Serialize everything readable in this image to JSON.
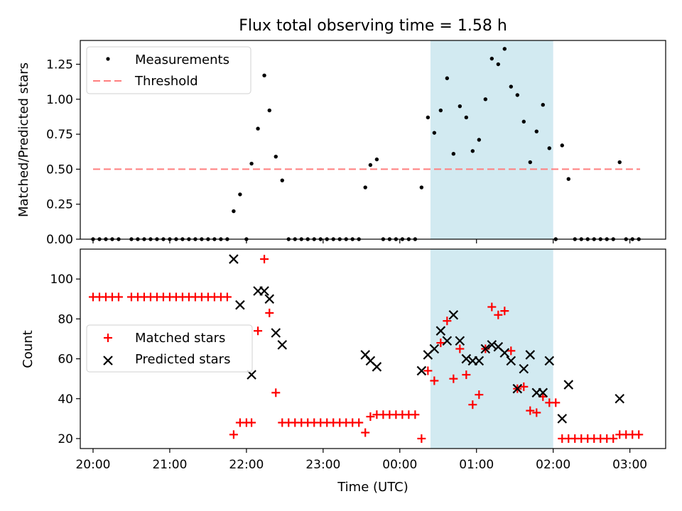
{
  "title": "Flux total observing time = 1.58 h",
  "colors": {
    "highlight": "#add8e6",
    "matched": "#ff0000",
    "predicted": "#000000",
    "threshold": "#ff7f7f"
  },
  "chart_data": [
    {
      "type": "scatter",
      "panel": "top",
      "title": "Flux total observing time = 1.58 h",
      "xlabel": "",
      "ylabel": "Matched/Predicted stars",
      "xlim": [
        "19:50",
        "03:28"
      ],
      "ylim": [
        0,
        1.42
      ],
      "yticks": [
        "0.00",
        "0.25",
        "0.50",
        "0.75",
        "1.00",
        "1.25"
      ],
      "highlight_span": [
        "00:24",
        "02:00"
      ],
      "legend_position": "upper-left",
      "threshold": {
        "name": "Threshold",
        "y": 0.5,
        "x_from": "20:00",
        "x_to": "03:08",
        "style": "dashed"
      },
      "series": [
        {
          "name": "Measurements",
          "marker": "dot",
          "points": [
            [
              "20:00",
              0
            ],
            [
              "20:05",
              0
            ],
            [
              "20:10",
              0
            ],
            [
              "20:15",
              0
            ],
            [
              "20:20",
              0
            ],
            [
              "20:30",
              0
            ],
            [
              "20:35",
              0
            ],
            [
              "20:40",
              0
            ],
            [
              "20:45",
              0
            ],
            [
              "20:50",
              0
            ],
            [
              "20:55",
              0
            ],
            [
              "21:00",
              0
            ],
            [
              "21:05",
              0
            ],
            [
              "21:10",
              0
            ],
            [
              "21:15",
              0
            ],
            [
              "21:20",
              0
            ],
            [
              "21:25",
              0
            ],
            [
              "21:30",
              0
            ],
            [
              "21:35",
              0
            ],
            [
              "21:40",
              0
            ],
            [
              "21:45",
              0
            ],
            [
              "21:50",
              0.2
            ],
            [
              "21:55",
              0.32
            ],
            [
              "22:00",
              0
            ],
            [
              "22:04",
              0.54
            ],
            [
              "22:09",
              0.79
            ],
            [
              "22:14",
              1.17
            ],
            [
              "22:18",
              0.92
            ],
            [
              "22:23",
              0.59
            ],
            [
              "22:28",
              0.42
            ],
            [
              "22:33",
              0
            ],
            [
              "22:38",
              0
            ],
            [
              "22:43",
              0
            ],
            [
              "22:48",
              0
            ],
            [
              "22:53",
              0
            ],
            [
              "22:58",
              0
            ],
            [
              "23:03",
              0
            ],
            [
              "23:08",
              0
            ],
            [
              "23:13",
              0
            ],
            [
              "23:18",
              0
            ],
            [
              "23:23",
              0
            ],
            [
              "23:28",
              0
            ],
            [
              "23:33",
              0.37
            ],
            [
              "23:37",
              0.53
            ],
            [
              "23:42",
              0.57
            ],
            [
              "23:47",
              0
            ],
            [
              "23:52",
              0
            ],
            [
              "23:57",
              0
            ],
            [
              "00:02",
              0
            ],
            [
              "00:07",
              0
            ],
            [
              "00:12",
              0
            ],
            [
              "00:17",
              0.37
            ],
            [
              "00:22",
              0.87
            ],
            [
              "00:27",
              0.76
            ],
            [
              "00:32",
              0.92
            ],
            [
              "00:37",
              1.15
            ],
            [
              "00:42",
              0.61
            ],
            [
              "00:47",
              0.95
            ],
            [
              "00:52",
              0.87
            ],
            [
              "00:57",
              0.63
            ],
            [
              "01:02",
              0.71
            ],
            [
              "01:07",
              1.0
            ],
            [
              "01:12",
              1.29
            ],
            [
              "01:17",
              1.25
            ],
            [
              "01:22",
              1.36
            ],
            [
              "01:27",
              1.09
            ],
            [
              "01:32",
              1.03
            ],
            [
              "01:37",
              0.84
            ],
            [
              "01:42",
              0.55
            ],
            [
              "01:47",
              0.77
            ],
            [
              "01:52",
              0.96
            ],
            [
              "01:57",
              0.65
            ],
            [
              "02:02",
              0
            ],
            [
              "02:07",
              0.67
            ],
            [
              "02:12",
              0.43
            ],
            [
              "02:17",
              0
            ],
            [
              "02:22",
              0
            ],
            [
              "02:27",
              0
            ],
            [
              "02:32",
              0
            ],
            [
              "02:37",
              0
            ],
            [
              "02:42",
              0
            ],
            [
              "02:47",
              0
            ],
            [
              "02:52",
              0.55
            ],
            [
              "02:57",
              0
            ],
            [
              "03:02",
              0
            ],
            [
              "03:07",
              0
            ]
          ]
        }
      ]
    },
    {
      "type": "scatter",
      "panel": "bottom",
      "xlabel": "Time (UTC)",
      "ylabel": "Count",
      "xlim": [
        "19:50",
        "03:28"
      ],
      "ylim": [
        15,
        115
      ],
      "yticks": [
        "20",
        "40",
        "60",
        "80",
        "100"
      ],
      "xticks": [
        "20:00",
        "21:00",
        "22:00",
        "23:00",
        "00:00",
        "01:00",
        "02:00",
        "03:00"
      ],
      "highlight_span": [
        "00:24",
        "02:00"
      ],
      "legend_position": "center-left",
      "series": [
        {
          "name": "Matched stars",
          "marker": "plus",
          "points": [
            [
              "20:00",
              91
            ],
            [
              "20:05",
              91
            ],
            [
              "20:10",
              91
            ],
            [
              "20:15",
              91
            ],
            [
              "20:20",
              91
            ],
            [
              "20:30",
              91
            ],
            [
              "20:35",
              91
            ],
            [
              "20:40",
              91
            ],
            [
              "20:45",
              91
            ],
            [
              "20:50",
              91
            ],
            [
              "20:55",
              91
            ],
            [
              "21:00",
              91
            ],
            [
              "21:05",
              91
            ],
            [
              "21:10",
              91
            ],
            [
              "21:15",
              91
            ],
            [
              "21:20",
              91
            ],
            [
              "21:25",
              91
            ],
            [
              "21:30",
              91
            ],
            [
              "21:35",
              91
            ],
            [
              "21:40",
              91
            ],
            [
              "21:45",
              91
            ],
            [
              "21:50",
              22
            ],
            [
              "21:55",
              28
            ],
            [
              "22:00",
              28
            ],
            [
              "22:04",
              28
            ],
            [
              "22:09",
              74
            ],
            [
              "22:14",
              110
            ],
            [
              "22:18",
              83
            ],
            [
              "22:23",
              43
            ],
            [
              "22:28",
              28
            ],
            [
              "22:33",
              28
            ],
            [
              "22:38",
              28
            ],
            [
              "22:43",
              28
            ],
            [
              "22:48",
              28
            ],
            [
              "22:53",
              28
            ],
            [
              "22:58",
              28
            ],
            [
              "23:03",
              28
            ],
            [
              "23:08",
              28
            ],
            [
              "23:13",
              28
            ],
            [
              "23:18",
              28
            ],
            [
              "23:23",
              28
            ],
            [
              "23:28",
              28
            ],
            [
              "23:33",
              23
            ],
            [
              "23:37",
              31
            ],
            [
              "23:42",
              32
            ],
            [
              "23:47",
              32
            ],
            [
              "23:52",
              32
            ],
            [
              "23:57",
              32
            ],
            [
              "00:02",
              32
            ],
            [
              "00:07",
              32
            ],
            [
              "00:12",
              32
            ],
            [
              "00:17",
              20
            ],
            [
              "00:22",
              54
            ],
            [
              "00:27",
              49
            ],
            [
              "00:32",
              68
            ],
            [
              "00:37",
              79
            ],
            [
              "00:42",
              50
            ],
            [
              "00:47",
              65
            ],
            [
              "00:52",
              52
            ],
            [
              "00:57",
              37
            ],
            [
              "01:02",
              42
            ],
            [
              "01:07",
              65
            ],
            [
              "01:12",
              86
            ],
            [
              "01:17",
              82
            ],
            [
              "01:22",
              84
            ],
            [
              "01:27",
              64
            ],
            [
              "01:32",
              45
            ],
            [
              "01:37",
              46
            ],
            [
              "01:42",
              34
            ],
            [
              "01:47",
              33
            ],
            [
              "01:52",
              41
            ],
            [
              "01:57",
              38
            ],
            [
              "02:02",
              38
            ],
            [
              "02:07",
              20
            ],
            [
              "02:12",
              20
            ],
            [
              "02:17",
              20
            ],
            [
              "02:22",
              20
            ],
            [
              "02:27",
              20
            ],
            [
              "02:32",
              20
            ],
            [
              "02:37",
              20
            ],
            [
              "02:42",
              20
            ],
            [
              "02:47",
              20
            ],
            [
              "02:52",
              22
            ],
            [
              "02:57",
              22
            ],
            [
              "03:02",
              22
            ],
            [
              "03:07",
              22
            ]
          ]
        },
        {
          "name": "Predicted stars",
          "marker": "x",
          "points": [
            [
              "21:50",
              110
            ],
            [
              "21:55",
              87
            ],
            [
              "22:04",
              52
            ],
            [
              "22:09",
              94
            ],
            [
              "22:14",
              94
            ],
            [
              "22:18",
              90
            ],
            [
              "22:23",
              73
            ],
            [
              "22:28",
              67
            ],
            [
              "23:33",
              62
            ],
            [
              "23:37",
              59
            ],
            [
              "23:42",
              56
            ],
            [
              "00:17",
              54
            ],
            [
              "00:22",
              62
            ],
            [
              "00:27",
              65
            ],
            [
              "00:32",
              74
            ],
            [
              "00:37",
              69
            ],
            [
              "00:42",
              82
            ],
            [
              "00:47",
              69
            ],
            [
              "00:52",
              60
            ],
            [
              "00:57",
              59
            ],
            [
              "01:02",
              59
            ],
            [
              "01:07",
              65
            ],
            [
              "01:12",
              67
            ],
            [
              "01:17",
              66
            ],
            [
              "01:22",
              63
            ],
            [
              "01:27",
              59
            ],
            [
              "01:32",
              45
            ],
            [
              "01:37",
              55
            ],
            [
              "01:42",
              62
            ],
            [
              "01:47",
              43
            ],
            [
              "01:52",
              43
            ],
            [
              "01:57",
              59
            ],
            [
              "02:07",
              30
            ],
            [
              "02:12",
              47
            ],
            [
              "02:52",
              40
            ]
          ]
        }
      ]
    }
  ]
}
